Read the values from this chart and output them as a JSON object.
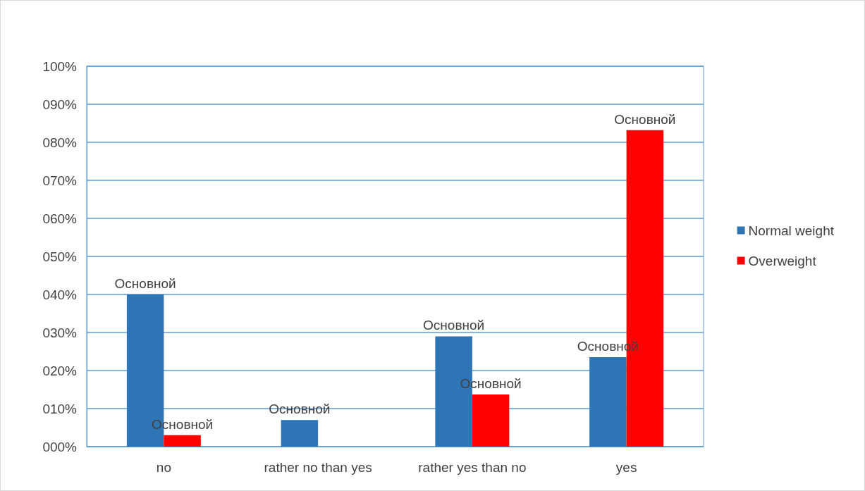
{
  "chart_data": {
    "type": "bar",
    "categories": [
      "no",
      "rather no than yes",
      "rather yes than no",
      "yes"
    ],
    "series": [
      {
        "name": "Normal weight",
        "color": "#2e75b6",
        "values": [
          40,
          7,
          29,
          23.5
        ],
        "value_labels": [
          "Основной",
          "Основной",
          "Основной",
          "Основной"
        ]
      },
      {
        "name": "Overweight",
        "color": "#ff0000",
        "values": [
          3,
          null,
          13.7,
          83.2
        ],
        "value_labels": [
          "Основной",
          null,
          "Основной",
          "Основной"
        ]
      }
    ],
    "ylim": [
      0,
      100
    ],
    "yticks": [
      {
        "value": 0,
        "label": "000%"
      },
      {
        "value": 10,
        "label": "010%"
      },
      {
        "value": 20,
        "label": "020%"
      },
      {
        "value": 30,
        "label": "030%"
      },
      {
        "value": 40,
        "label": "040%"
      },
      {
        "value": 50,
        "label": "050%"
      },
      {
        "value": 60,
        "label": "060%"
      },
      {
        "value": 70,
        "label": "070%"
      },
      {
        "value": 80,
        "label": "080%"
      },
      {
        "value": 90,
        "label": "090%"
      },
      {
        "value": 100,
        "label": "100%"
      }
    ],
    "grid": "y",
    "legend": "right"
  }
}
